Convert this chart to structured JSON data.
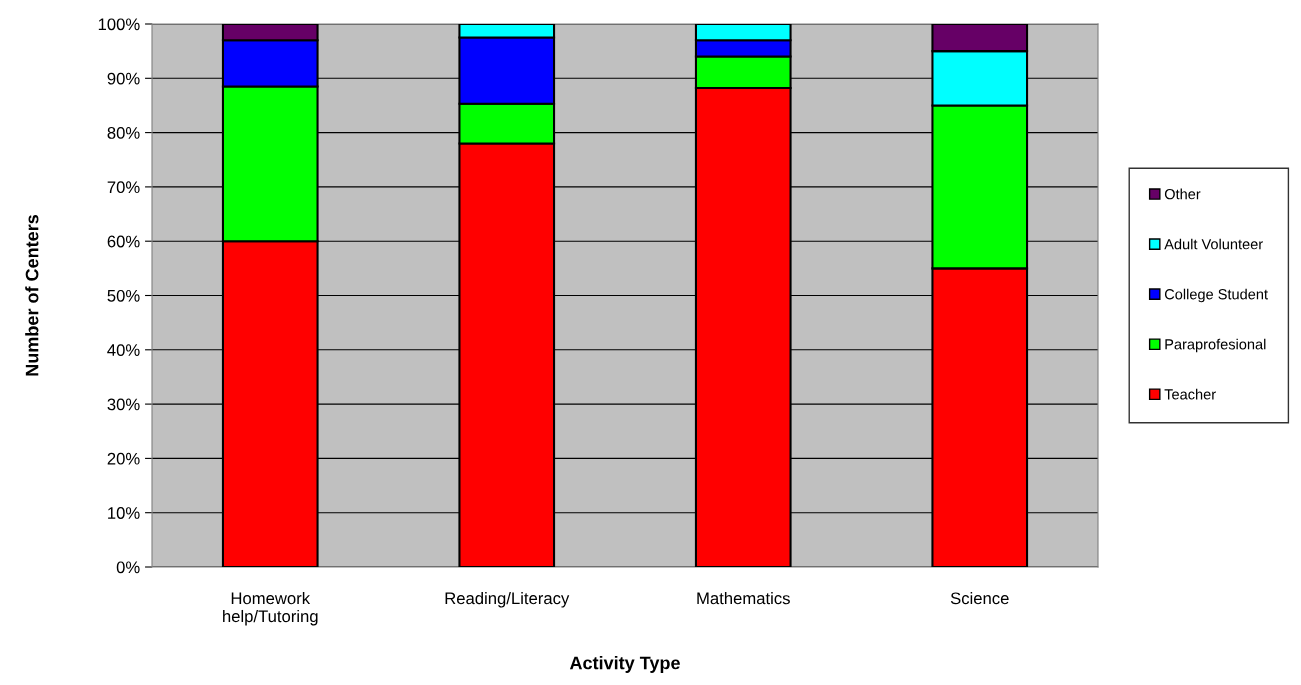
{
  "chart_data": {
    "type": "bar",
    "stacked": true,
    "xlabel": "Activity Type",
    "ylabel": "Number of Centers",
    "categories": [
      "Homework\nhelp/Tutoring",
      "Reading/Literacy",
      "Mathematics",
      "Science"
    ],
    "series": [
      {
        "name": "Teacher",
        "color": "#ff0000",
        "values": [
          60,
          78,
          88.2,
          55
        ]
      },
      {
        "name": "Paraprofesional",
        "color": "#00ff00",
        "values": [
          28.5,
          7.3,
          5.8,
          30
        ]
      },
      {
        "name": "College Student",
        "color": "#0000ff",
        "values": [
          8.5,
          12.2,
          3,
          null
        ]
      },
      {
        "name": "Adult Volunteer",
        "color": "#00ffff",
        "values": [
          null,
          2.5,
          3,
          10
        ]
      },
      {
        "name": "Other",
        "color": "#660066",
        "values": [
          3,
          null,
          null,
          5
        ]
      }
    ],
    "ylim": [
      0,
      100
    ],
    "yticks": [
      {
        "value": 0,
        "label": "0%"
      },
      {
        "value": 10,
        "label": "10%"
      },
      {
        "value": 20,
        "label": "20%"
      },
      {
        "value": 30,
        "label": "30%"
      },
      {
        "value": 40,
        "label": "40%"
      },
      {
        "value": 50,
        "label": "50%"
      },
      {
        "value": 60,
        "label": "60%"
      },
      {
        "value": 70,
        "label": "70%"
      },
      {
        "value": 80,
        "label": "80%"
      },
      {
        "value": 90,
        "label": "90%"
      },
      {
        "value": 100,
        "label": "100%"
      }
    ],
    "grid": "y",
    "legend": "right"
  }
}
